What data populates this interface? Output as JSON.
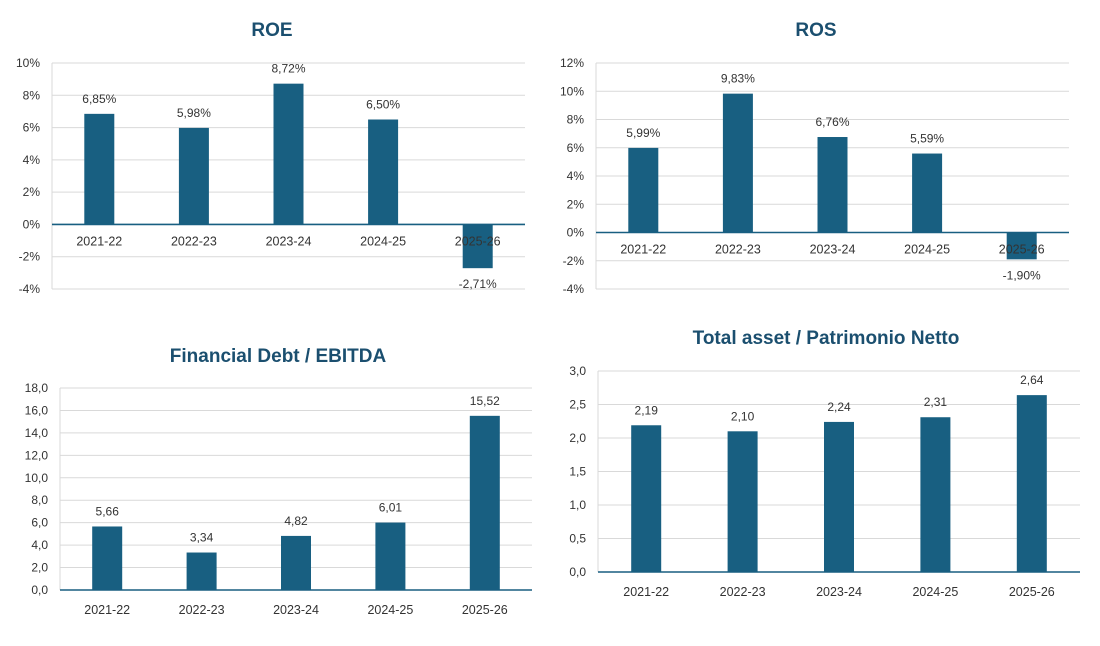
{
  "colors": {
    "bar": "#185f81",
    "title": "#1b4f6f",
    "grid": "#d9d9d9",
    "axis": "#185f81",
    "text": "#333333"
  },
  "chart_data": [
    {
      "type": "bar",
      "title": "ROE",
      "categories": [
        "2021-22",
        "2022-23",
        "2023-24",
        "2024-25",
        "2025-26"
      ],
      "values": [
        6.85,
        5.98,
        8.72,
        6.5,
        -2.71
      ],
      "value_labels": [
        "6,85%",
        "5,98%",
        "8,72%",
        "6,50%",
        "-2,71%"
      ],
      "ylim": [
        -4,
        10
      ],
      "yticks": [
        10,
        8,
        6,
        4,
        2,
        0,
        -2,
        -4
      ],
      "ytick_labels": [
        "10%",
        "8%",
        "6%",
        "4%",
        "2%",
        "0%",
        "-2%",
        "-4%"
      ],
      "grid": true,
      "legend": "none"
    },
    {
      "type": "bar",
      "title": "ROS",
      "categories": [
        "2021-22",
        "2022-23",
        "2023-24",
        "2024-25",
        "2025-26"
      ],
      "values": [
        5.99,
        9.83,
        6.76,
        5.59,
        -1.9
      ],
      "value_labels": [
        "5,99%",
        "9,83%",
        "6,76%",
        "5,59%",
        "-1,90%"
      ],
      "ylim": [
        -4,
        12
      ],
      "yticks": [
        12,
        10,
        8,
        6,
        4,
        2,
        0,
        -2,
        -4
      ],
      "ytick_labels": [
        "12%",
        "10%",
        "8%",
        "6%",
        "4%",
        "2%",
        "0%",
        "-2%",
        "-4%"
      ],
      "grid": true,
      "legend": "none"
    },
    {
      "type": "bar",
      "title": "Financial Debt / EBITDA",
      "categories": [
        "2021-22",
        "2022-23",
        "2023-24",
        "2024-25",
        "2025-26"
      ],
      "values": [
        5.66,
        3.34,
        4.82,
        6.01,
        15.52
      ],
      "value_labels": [
        "5,66",
        "3,34",
        "4,82",
        "6,01",
        "15,52"
      ],
      "ylim": [
        0,
        18
      ],
      "yticks": [
        18,
        16,
        14,
        12,
        10,
        8,
        6,
        4,
        2,
        0
      ],
      "ytick_labels": [
        "18,0",
        "16,0",
        "14,0",
        "12,0",
        "10,0",
        "8,0",
        "6,0",
        "4,0",
        "2,0",
        "0,0"
      ],
      "grid": true,
      "legend": "none"
    },
    {
      "type": "bar",
      "title": "Total asset /  Patrimonio Netto",
      "categories": [
        "2021-22",
        "2022-23",
        "2023-24",
        "2024-25",
        "2025-26"
      ],
      "values": [
        2.19,
        2.1,
        2.24,
        2.31,
        2.64
      ],
      "value_labels": [
        "2,19",
        "2,10",
        "2,24",
        "2,31",
        "2,64"
      ],
      "ylim": [
        0,
        3
      ],
      "yticks": [
        3.0,
        2.5,
        2.0,
        1.5,
        1.0,
        0.5,
        0.0
      ],
      "ytick_labels": [
        "3,0",
        "2,5",
        "2,0",
        "1,5",
        "1,0",
        "0,5",
        "0,0"
      ],
      "grid": true,
      "legend": "none"
    }
  ]
}
